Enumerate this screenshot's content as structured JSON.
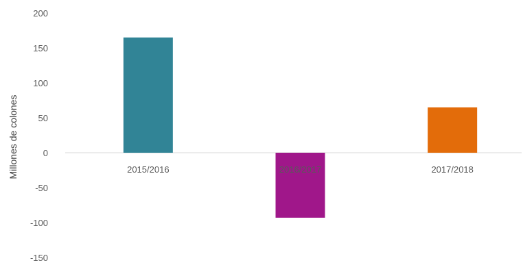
{
  "chart_data": {
    "type": "bar",
    "categories": [
      "2015/2016",
      "2016/2017",
      "2017/2018"
    ],
    "values": [
      165,
      -93,
      65
    ],
    "colors": [
      "#318496",
      "#a0178a",
      "#e36c0a"
    ],
    "ylabel": "Millones de colones",
    "xlabel": "",
    "ylim": [
      -150,
      200
    ],
    "yticks": [
      "200",
      "150",
      "100",
      "50",
      "0",
      "-50",
      "-100",
      "-150"
    ],
    "grid": false,
    "legend": "none"
  }
}
